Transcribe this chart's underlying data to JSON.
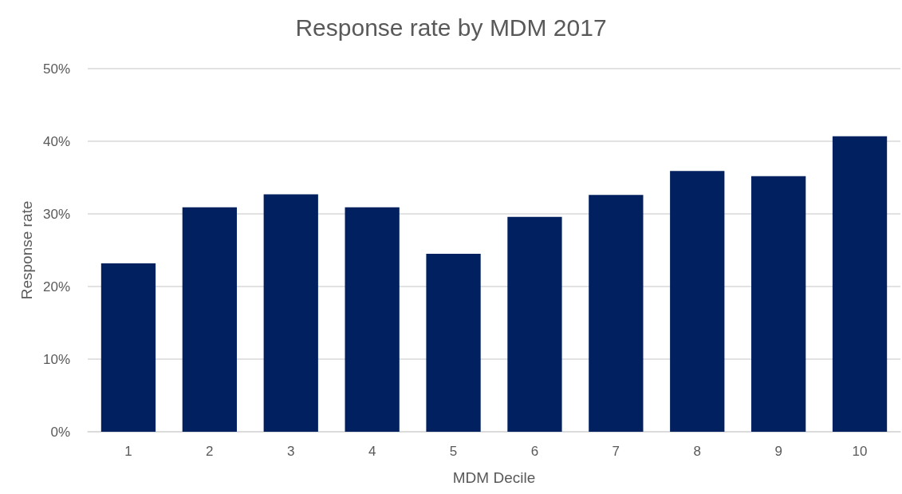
{
  "chart_data": {
    "type": "bar",
    "title": "Response rate by MDM 2017",
    "xlabel": "MDM Decile",
    "ylabel": "Response rate",
    "categories": [
      "1",
      "2",
      "3",
      "4",
      "5",
      "6",
      "7",
      "8",
      "9",
      "10"
    ],
    "values": [
      23.2,
      30.9,
      32.7,
      30.9,
      24.5,
      29.6,
      32.6,
      35.9,
      35.2,
      40.7
    ],
    "color": "#002060",
    "ylim": [
      0,
      50
    ],
    "yticks": [
      {
        "value": 0,
        "label": "0%"
      },
      {
        "value": 10,
        "label": "10%"
      },
      {
        "value": 20,
        "label": "20%"
      },
      {
        "value": 30,
        "label": "30%"
      },
      {
        "value": 40,
        "label": "40%"
      },
      {
        "value": 50,
        "label": "50%"
      }
    ],
    "grid": "y"
  }
}
